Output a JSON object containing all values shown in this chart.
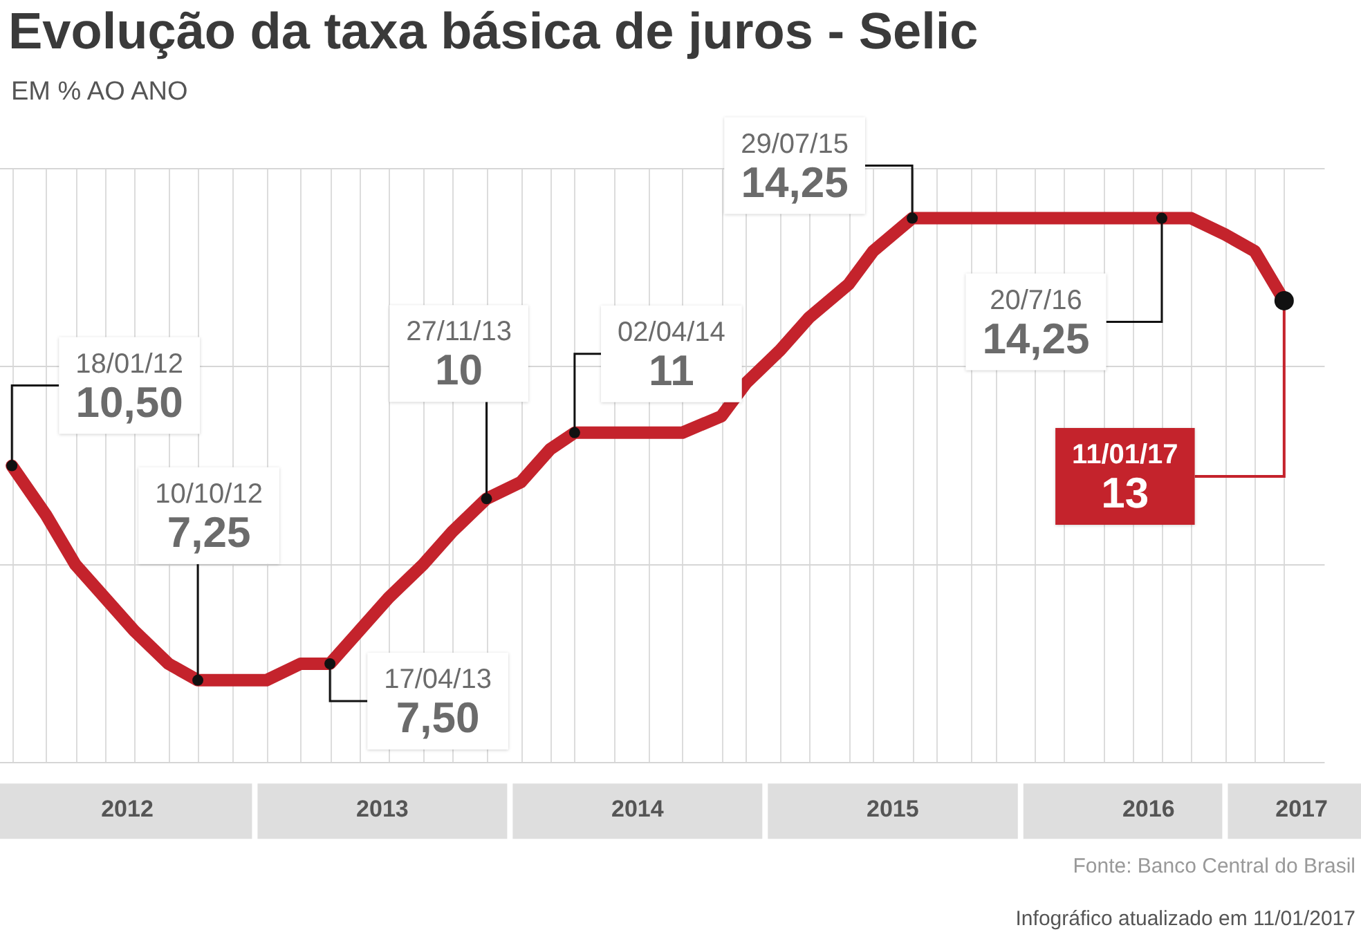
{
  "chart_data": {
    "type": "line",
    "title": "Evolução da taxa básica de juros - Selic",
    "subtitle": "EM % AO ANO",
    "x": [
      "2012-01-18",
      "2012-03-07",
      "2012-04-18",
      "2012-05-30",
      "2012-07-11",
      "2012-08-29",
      "2012-10-10",
      "2012-11-28",
      "2013-01-16",
      "2013-03-06",
      "2013-04-17",
      "2013-05-29",
      "2013-07-10",
      "2013-08-28",
      "2013-10-09",
      "2013-11-27",
      "2014-01-15",
      "2014-02-26",
      "2014-04-02",
      "2014-05-28",
      "2014-07-16",
      "2014-09-03",
      "2014-10-29",
      "2014-12-03",
      "2015-01-21",
      "2015-03-04",
      "2015-04-29",
      "2015-06-03",
      "2015-07-29",
      "2015-09-02",
      "2015-10-21",
      "2015-11-25",
      "2016-01-20",
      "2016-03-02",
      "2016-04-27",
      "2016-06-08",
      "2016-07-20",
      "2016-08-31",
      "2016-10-19",
      "2016-11-30",
      "2017-01-11"
    ],
    "series": [
      {
        "color": "#c4232c",
        "value_labels": [
          "10,50",
          null,
          null,
          null,
          null,
          null,
          "7,25",
          null,
          null,
          null,
          "7,50",
          null,
          null,
          null,
          null,
          "10",
          null,
          null,
          "11",
          null,
          null,
          null,
          null,
          null,
          null,
          null,
          null,
          null,
          "14,25",
          null,
          null,
          null,
          null,
          null,
          null,
          null,
          "14,25",
          null,
          null,
          null,
          "13"
        ],
        "values": [
          10.5,
          9.75,
          9.0,
          8.5,
          8.0,
          7.5,
          7.25,
          7.25,
          7.25,
          7.5,
          7.5,
          8.0,
          8.5,
          9.0,
          9.5,
          10.0,
          10.25,
          10.75,
          11.0,
          11.0,
          11.0,
          11.0,
          11.25,
          11.75,
          12.25,
          12.75,
          13.25,
          13.75,
          14.25,
          14.25,
          14.25,
          14.25,
          14.25,
          14.25,
          14.25,
          14.25,
          14.25,
          14.25,
          14.0,
          13.75,
          13.0
        ]
      }
    ],
    "xlim": [
      "2012-01-01",
      "2017-03-10"
    ],
    "xticks": [
      {
        "value": "2012-07-01",
        "label": "2012"
      },
      {
        "value": "2013-07-01",
        "label": "2013"
      },
      {
        "value": "2014-07-01",
        "label": "2014"
      },
      {
        "value": "2015-07-01",
        "label": "2015"
      },
      {
        "value": "2016-07-01",
        "label": "2016"
      },
      {
        "value": "2017-02-05",
        "label": "2017"
      }
    ],
    "ylim": [
      6,
      15
    ],
    "yticks": [
      {
        "value": 6,
        "label": null
      },
      {
        "value": 9,
        "label": null
      },
      {
        "value": 12,
        "label": null
      },
      {
        "value": 15,
        "label": null
      }
    ],
    "tick_labels": "x",
    "grid": true,
    "legend": false,
    "marker": "none",
    "line_style": "solid",
    "annotations": [
      "18/01/12",
      "10/10/12",
      "17/04/13",
      "27/11/13",
      "02/04/14",
      "29/07/15",
      "20/7/16",
      "11/01/17",
      "Fonte: Banco Central do Brasil",
      "Infográfico atualizado em 11/01/2017"
    ]
  }
}
